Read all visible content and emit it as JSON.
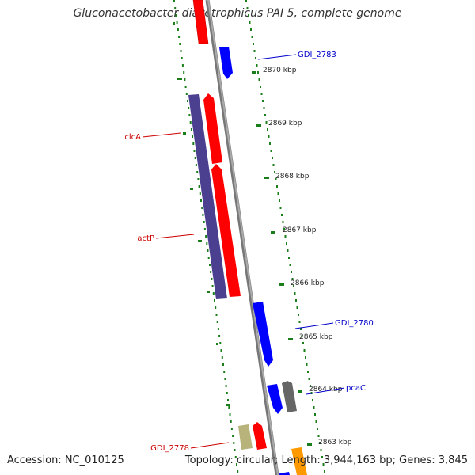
{
  "title": "Gluconacetobacter diazotrophicus PAI 5, complete genome",
  "footer": {
    "accession": "Accession: NC_010125",
    "stats": "Topology: circular; Length: 3,944,163 bp; Genes: 3,845"
  },
  "ticks": [
    "2870 kbp",
    "2869 kbp",
    "2868 kbp",
    "2867 kbp",
    "2866 kbp",
    "2865 kbp",
    "2864 kbp",
    "2863 kbp"
  ],
  "labels": {
    "gdi_2783": "GDI_2783",
    "clca": "clcA",
    "actp": "actP",
    "gdi_2780": "GDI_2780",
    "pcac": "pcaC",
    "gdi_2778": "GDI_2778"
  },
  "colors": {
    "forward_gene": "#ff0000",
    "reverse_gene": "#0000ff",
    "rna": "#4b3f8f",
    "other": "#666666",
    "misc": "#b8b37a",
    "orange": "#ff9900",
    "gc_dots": "#1a7f1a",
    "backbone": "#888888",
    "label_red": "#cc0000",
    "label_blue": "#0000cc"
  }
}
